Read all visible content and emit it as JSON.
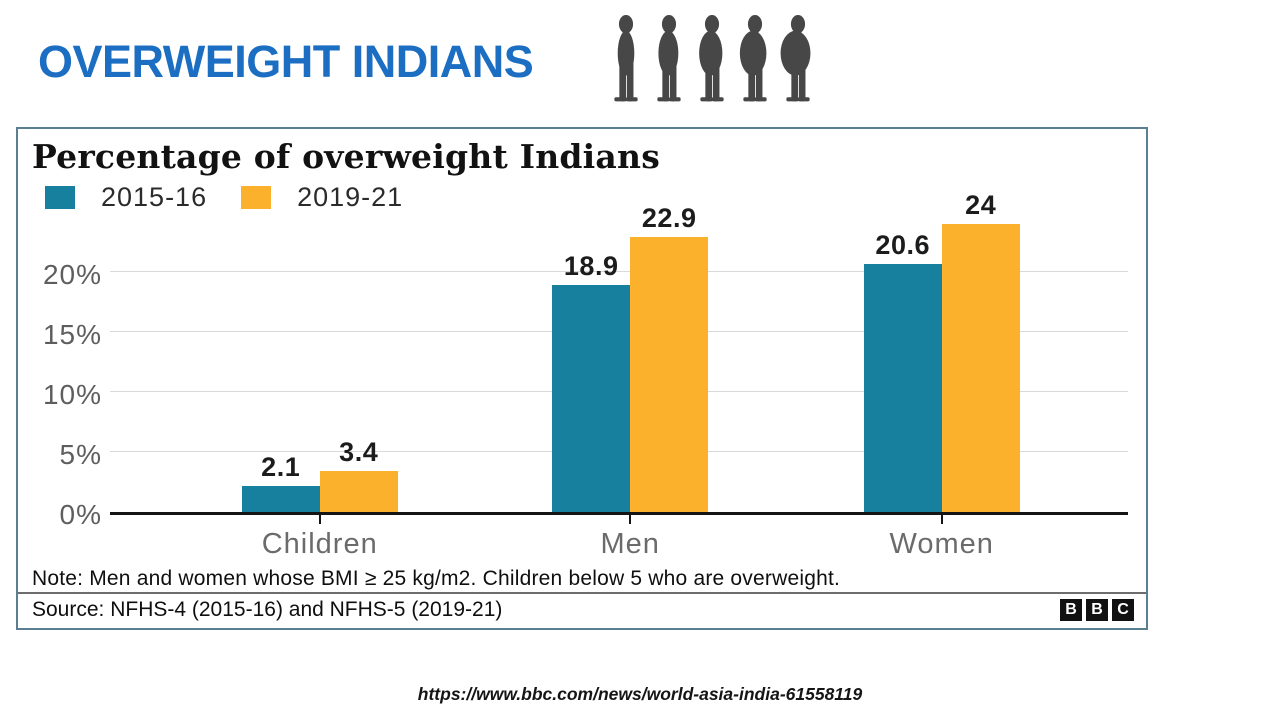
{
  "header": {
    "title": "OVERWEIGHT INDIANS",
    "title_color": "#1b6ec2",
    "figure_color": "#474747",
    "figures": [
      "person-silhouette-slim",
      "person-silhouette-medium",
      "person-silhouette-large",
      "person-silhouette-larger",
      "person-silhouette-obese"
    ]
  },
  "chart_data": {
    "type": "bar",
    "title": "Percentage of overweight Indians",
    "categories": [
      "Children",
      "Men",
      "Women"
    ],
    "series": [
      {
        "name": "2015-16",
        "color": "#17809f",
        "values": [
          2.1,
          18.9,
          20.6
        ]
      },
      {
        "name": "2019-21",
        "color": "#fcb12d",
        "values": [
          3.4,
          22.9,
          24
        ]
      }
    ],
    "value_labels": [
      [
        "2.1",
        "3.4"
      ],
      [
        "18.9",
        "22.9"
      ],
      [
        "20.6",
        "24"
      ]
    ],
    "yticks": [
      {
        "label": "0%",
        "value": 0
      },
      {
        "label": "5%",
        "value": 5
      },
      {
        "label": "10%",
        "value": 10
      },
      {
        "label": "15%",
        "value": 15
      },
      {
        "label": "20%",
        "value": 20
      }
    ],
    "ylim": [
      0,
      25
    ],
    "grid": true,
    "legend_position": "top-left",
    "axis_color": "#151515",
    "gridline_color": "#d9d9d9",
    "note": "Note: Men and women whose BMI ≥ 25 kg/m2. Children below 5 who are overweight.",
    "source": "Source: NFHS-4 (2015-16) and NFHS-5 (2019-21)",
    "logo_letters": [
      "B",
      "B",
      "C"
    ]
  },
  "footer": {
    "url": "https://www.bbc.com/news/world-asia-india-61558119"
  }
}
